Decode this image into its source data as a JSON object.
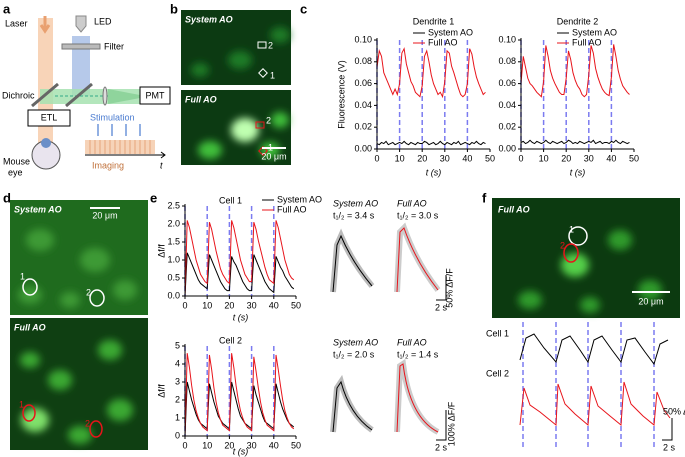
{
  "panel_labels": [
    "a",
    "b",
    "c",
    "d",
    "e",
    "f"
  ],
  "diagram": {
    "laser": "Laser",
    "led": "LED",
    "filter": "Filter",
    "dichroic": "Dichroic",
    "pmt": "PMT",
    "etl": "ETL",
    "stimulation": "Stimulation",
    "mouse_eye": [
      "Mouse",
      "eye"
    ],
    "imaging": "Imaging",
    "t": "t"
  },
  "images": {
    "b_top": {
      "label": "System AO",
      "rois": [
        "2",
        "1"
      ]
    },
    "b_bottom": {
      "label": "Full AO",
      "rois": [
        "2",
        "1"
      ],
      "scale": "20 μm"
    },
    "d_top": {
      "label": "System AO",
      "rois": [
        "1",
        "2"
      ],
      "scale": "20 μm"
    },
    "d_bottom": {
      "label": "Full AO",
      "rois": [
        "1",
        "2"
      ]
    },
    "f": {
      "label": "Full AO",
      "rois": [
        "1",
        "2"
      ],
      "scale": "20 μm"
    }
  },
  "averages": {
    "cell1": {
      "system": {
        "label": "System AO",
        "half": "t₁/₂ = 3.4 s"
      },
      "full": {
        "label": "Full AO",
        "half": "t₁/₂ = 3.0 s"
      },
      "scale_y": "50% ΔF/F",
      "scale_x": "2 s"
    },
    "cell2": {
      "system": {
        "label": "System AO",
        "half": "t₁/₂ = 2.0 s"
      },
      "full": {
        "label": "Full AO",
        "half": "t₁/₂ = 1.4 s"
      },
      "scale_y": "100% ΔF/F",
      "scale_x": "2 s"
    }
  },
  "panel_f_traces": {
    "labels": [
      "Cell 1",
      "Cell 2"
    ],
    "scale_y": "50% ΔF/F",
    "scale_x": "2 s"
  },
  "chart_data": [
    {
      "type": "line",
      "title": "Dendrite 1",
      "xlabel": "t (s)",
      "ylabel": "Fluorescence (V)",
      "x": [
        0,
        1,
        2,
        3,
        4,
        5,
        6,
        7,
        8,
        9,
        10,
        11,
        12,
        13,
        14,
        15,
        16,
        17,
        18,
        19,
        20,
        21,
        22,
        23,
        24,
        25,
        26,
        27,
        28,
        29,
        30,
        31,
        32,
        33,
        34,
        35,
        36,
        37,
        38,
        39,
        40,
        41,
        42,
        43,
        44,
        45,
        46,
        47,
        48
      ],
      "series": [
        {
          "name": "System AO",
          "color": "#000000",
          "values": [
            0.005,
            0.004,
            0.006,
            0.005,
            0.007,
            0.004,
            0.005,
            0.006,
            0.004,
            0.005,
            0.006,
            0.005,
            0.007,
            0.005,
            0.004,
            0.006,
            0.005,
            0.004,
            0.006,
            0.005,
            0.005,
            0.007,
            0.006,
            0.004,
            0.005,
            0.006,
            0.004,
            0.005,
            0.007,
            0.005,
            0.004,
            0.006,
            0.005,
            0.004,
            0.006,
            0.005,
            0.007,
            0.004,
            0.005,
            0.006,
            0.005,
            0.004,
            0.006,
            0.005,
            0.007,
            0.005,
            0.004,
            0.006,
            0.005
          ]
        },
        {
          "name": "Full AO",
          "color": "#e8141b",
          "values": [
            0.075,
            0.09,
            0.085,
            0.07,
            0.065,
            0.06,
            0.055,
            0.05,
            0.055,
            0.05,
            0.06,
            0.088,
            0.092,
            0.078,
            0.07,
            0.062,
            0.058,
            0.052,
            0.05,
            0.048,
            0.058,
            0.085,
            0.09,
            0.08,
            0.068,
            0.06,
            0.055,
            0.05,
            0.052,
            0.048,
            0.062,
            0.09,
            0.088,
            0.076,
            0.07,
            0.063,
            0.056,
            0.05,
            0.048,
            0.05,
            0.06,
            0.092,
            0.087,
            0.075,
            0.066,
            0.06,
            0.055,
            0.05,
            0.052
          ]
        }
      ],
      "stimulus_times": [
        0,
        10,
        20,
        30,
        40
      ],
      "legend": "upper right",
      "xlim": [
        0,
        50
      ],
      "ylim": [
        0,
        0.1
      ],
      "xticks": [
        0,
        10,
        20,
        30,
        40,
        50
      ],
      "yticks": [
        {
          "value": 0,
          "label": "0.00"
        },
        {
          "value": 0.02,
          "label": "0.02"
        },
        {
          "value": 0.04,
          "label": "0.04"
        },
        {
          "value": 0.06,
          "label": "0.06"
        },
        {
          "value": 0.08,
          "label": "0.08"
        },
        {
          "value": 0.1,
          "label": "0.10"
        }
      ]
    },
    {
      "type": "line",
      "title": "Dendrite 2",
      "xlabel": "t (s)",
      "x": [
        0,
        1,
        2,
        3,
        4,
        5,
        6,
        7,
        8,
        9,
        10,
        11,
        12,
        13,
        14,
        15,
        16,
        17,
        18,
        19,
        20,
        21,
        22,
        23,
        24,
        25,
        26,
        27,
        28,
        29,
        30,
        31,
        32,
        33,
        34,
        35,
        36,
        37,
        38,
        39,
        40,
        41,
        42,
        43,
        44,
        45,
        46,
        47,
        48
      ],
      "series": [
        {
          "name": "System AO",
          "color": "#000000",
          "values": [
            0.006,
            0.007,
            0.005,
            0.006,
            0.008,
            0.006,
            0.005,
            0.007,
            0.006,
            0.005,
            0.006,
            0.008,
            0.006,
            0.005,
            0.007,
            0.006,
            0.005,
            0.006,
            0.007,
            0.005,
            0.006,
            0.008,
            0.007,
            0.005,
            0.006,
            0.005,
            0.007,
            0.006,
            0.005,
            0.006,
            0.007,
            0.006,
            0.008,
            0.005,
            0.006,
            0.007,
            0.005,
            0.006,
            0.006,
            0.005,
            0.007,
            0.006,
            0.008,
            0.006,
            0.005,
            0.007,
            0.006,
            0.005,
            0.006
          ]
        },
        {
          "name": "Full AO",
          "color": "#e8141b",
          "values": [
            0.06,
            0.085,
            0.075,
            0.065,
            0.06,
            0.058,
            0.055,
            0.052,
            0.05,
            0.048,
            0.062,
            0.095,
            0.085,
            0.072,
            0.065,
            0.06,
            0.056,
            0.052,
            0.05,
            0.05,
            0.065,
            0.09,
            0.082,
            0.07,
            0.063,
            0.058,
            0.055,
            0.05,
            0.048,
            0.05,
            0.068,
            0.095,
            0.088,
            0.074,
            0.066,
            0.06,
            0.055,
            0.052,
            0.05,
            0.049,
            0.066,
            0.096,
            0.085,
            0.072,
            0.064,
            0.058,
            0.055,
            0.052,
            0.05
          ]
        }
      ],
      "stimulus_times": [
        0,
        10,
        20,
        30,
        40
      ],
      "legend": "upper right",
      "xlim": [
        0,
        50
      ],
      "ylim": [
        0,
        0.1
      ],
      "xticks": [
        0,
        10,
        20,
        30,
        40,
        50
      ],
      "yticks": [
        {
          "value": 0,
          "label": "0.00"
        },
        {
          "value": 0.02,
          "label": "0.02"
        },
        {
          "value": 0.04,
          "label": "0.04"
        },
        {
          "value": 0.06,
          "label": "0.06"
        },
        {
          "value": 0.08,
          "label": "0.08"
        },
        {
          "value": 0.1,
          "label": "0.10"
        }
      ]
    },
    {
      "type": "line",
      "title": "Cell 1",
      "xlabel": "t (s)",
      "ylabel": "Δf/f",
      "x": [
        0,
        1,
        2,
        3,
        4,
        5,
        6,
        7,
        8,
        9,
        10,
        11,
        12,
        13,
        14,
        15,
        16,
        17,
        18,
        19,
        20,
        21,
        22,
        23,
        24,
        25,
        26,
        27,
        28,
        29,
        30,
        31,
        32,
        33,
        34,
        35,
        36,
        37,
        38,
        39,
        40,
        41,
        42,
        43,
        44,
        45,
        46,
        47,
        48,
        49
      ],
      "series": [
        {
          "name": "System AO",
          "color": "#000000",
          "values": [
            0,
            1.2,
            1.05,
            0.9,
            0.75,
            0.6,
            0.45,
            0.35,
            0.3,
            0.25,
            0.2,
            1.15,
            1.0,
            0.85,
            0.7,
            0.55,
            0.4,
            0.3,
            0.2,
            0.15,
            0.15,
            1.1,
            0.95,
            0.85,
            0.7,
            0.55,
            0.4,
            0.3,
            0.2,
            0.15,
            0.15,
            1.15,
            1.0,
            0.85,
            0.7,
            0.55,
            0.4,
            0.3,
            0.2,
            0.15,
            0.1,
            1.1,
            0.95,
            0.8,
            0.7,
            0.55,
            0.45,
            0.35,
            0.25,
            0.2
          ]
        },
        {
          "name": "Full AO",
          "color": "#e8141b",
          "values": [
            0,
            2.1,
            1.9,
            1.6,
            1.3,
            1.0,
            0.8,
            0.6,
            0.5,
            0.4,
            0.35,
            2.05,
            1.85,
            1.55,
            1.25,
            1.0,
            0.75,
            0.6,
            0.5,
            0.4,
            0.35,
            2.1,
            1.9,
            1.6,
            1.3,
            1.0,
            0.8,
            0.6,
            0.5,
            0.4,
            0.4,
            2.05,
            1.85,
            1.55,
            1.3,
            1.05,
            0.8,
            0.6,
            0.45,
            0.4,
            0.35,
            2.1,
            1.9,
            1.6,
            1.3,
            1.0,
            0.8,
            0.6,
            0.5,
            0.45
          ]
        }
      ],
      "stimulus_times": [
        0,
        10,
        20,
        30,
        40
      ],
      "legend": "outside right",
      "xlim": [
        0,
        50
      ],
      "ylim": [
        0,
        2.5
      ],
      "xticks": [
        0,
        10,
        20,
        30,
        40,
        50
      ],
      "yticks": [
        {
          "value": 0,
          "label": "0.0"
        },
        0.5,
        {
          "value": 1,
          "label": "1.0"
        },
        1.5,
        {
          "value": 2,
          "label": "2.0"
        },
        2.5
      ]
    },
    {
      "type": "line",
      "xlabel": "t (s)",
      "ylabel": "Δf/f",
      "title": "Cell 2",
      "x": [
        0,
        1,
        2,
        3,
        4,
        5,
        6,
        7,
        8,
        9,
        10,
        11,
        12,
        13,
        14,
        15,
        16,
        17,
        18,
        19,
        20,
        21,
        22,
        23,
        24,
        25,
        26,
        27,
        28,
        29,
        30,
        31,
        32,
        33,
        34,
        35,
        36,
        37,
        38,
        39,
        40,
        41,
        42,
        43,
        44,
        45,
        46,
        47,
        48,
        49
      ],
      "series": [
        {
          "color": "#000000",
          "values": [
            0,
            3.0,
            2.5,
            2.0,
            1.6,
            1.2,
            0.9,
            0.7,
            0.6,
            0.5,
            0.4,
            2.9,
            2.4,
            1.9,
            1.5,
            1.1,
            0.9,
            0.7,
            0.6,
            0.5,
            0.4,
            3.0,
            2.5,
            2.0,
            1.5,
            1.1,
            0.9,
            0.7,
            0.6,
            0.5,
            0.4,
            2.8,
            2.3,
            1.9,
            1.5,
            1.1,
            0.8,
            0.7,
            0.6,
            0.5,
            0.4,
            2.9,
            2.4,
            1.9,
            1.5,
            1.2,
            0.9,
            0.7,
            0.6,
            0.5
          ]
        },
        {
          "color": "#e8141b",
          "values": [
            0,
            4.6,
            3.8,
            2.8,
            2.0,
            1.4,
            1.0,
            0.7,
            0.5,
            0.4,
            0.3,
            4.5,
            3.7,
            2.7,
            1.9,
            1.3,
            0.9,
            0.6,
            0.5,
            0.4,
            0.3,
            4.6,
            3.8,
            2.8,
            2.0,
            1.4,
            1.0,
            0.7,
            0.5,
            0.4,
            0.3,
            4.4,
            3.6,
            2.7,
            1.9,
            1.3,
            0.9,
            0.6,
            0.5,
            0.4,
            0.3,
            4.5,
            3.7,
            2.8,
            2.0,
            1.4,
            1.0,
            0.7,
            0.5,
            0.4
          ]
        }
      ],
      "stimulus_times": [
        0,
        10,
        20,
        30,
        40
      ],
      "xlim": [
        0,
        50
      ],
      "ylim": [
        0,
        5
      ],
      "xticks": [
        0,
        10,
        20,
        30,
        40,
        50
      ],
      "yticks": [
        0,
        1,
        2,
        3,
        4,
        5
      ]
    }
  ]
}
